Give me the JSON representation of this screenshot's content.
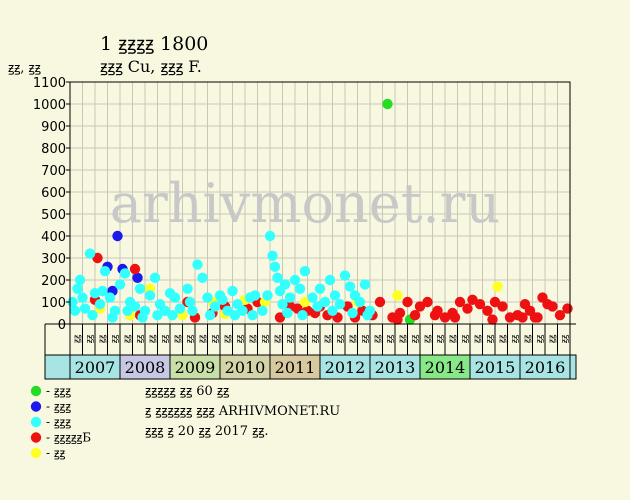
{
  "header": {
    "title": "1 ꙃꙃꙃꙃ 1800",
    "subtitle": "ꙃꙃꙃ Cu, ꙃꙃꙃ F.",
    "y_unit": "ꙃꙃ, ꙃꙃ"
  },
  "watermark": "arhivmonet.ru",
  "colors": {
    "background": "#f8f8e0",
    "grid": "#c8c8b8",
    "green": "#22dd22",
    "blue": "#1a1aee",
    "cyan": "#33ffff",
    "red": "#ee1111",
    "yellow": "#ffff22",
    "watermark": "#c8c8c8"
  },
  "legend": [
    {
      "color_key": "green",
      "label": "- ꙃꙃꙃ"
    },
    {
      "color_key": "blue",
      "label": "- ꙃꙃꙃ"
    },
    {
      "color_key": "cyan",
      "label": "- ꙃꙃꙃ"
    },
    {
      "color_key": "red",
      "label": "- ꙃꙃꙃꙃꙃБ"
    },
    {
      "color_key": "yellow",
      "label": "- ꙃꙃ"
    }
  ],
  "notes": [
    "ꙃꙃꙃꙃꙃ ꙃꙃ 60 ꙃꙃ",
    "ꙃ ꙃꙃꙃꙃꙃꙃ ꙃꙃꙃ ARHIVMONET.RU",
    "ꙃꙃꙃ ꙃ 20 ꙃꙃ 2017 ꙃꙃ."
  ],
  "chart_data": {
    "type": "scatter",
    "ylim": [
      0,
      1100
    ],
    "yticks": [
      0,
      100,
      200,
      300,
      400,
      500,
      600,
      700,
      800,
      900,
      1000,
      1100
    ],
    "grid": true,
    "half_labels": [
      "ꙃꙃ",
      "ꙃꙃ"
    ],
    "years": [
      {
        "label": "2007",
        "color": "#a8e4e4"
      },
      {
        "label": "2008",
        "color": "#c8c8e4"
      },
      {
        "label": "2009",
        "color": "#c8e0a8"
      },
      {
        "label": "2010",
        "color": "#d4d4a8"
      },
      {
        "label": "2011",
        "color": "#d8c8a0"
      },
      {
        "label": "2012",
        "color": "#a8e4e4"
      },
      {
        "label": "2013",
        "color": "#a8e4e4"
      },
      {
        "label": "2014",
        "color": "#88e888"
      },
      {
        "label": "2015",
        "color": "#a8e4e4"
      },
      {
        "label": "2016",
        "color": "#a8e4e4"
      }
    ],
    "series": [
      {
        "color_key": "green",
        "points": [
          [
            2013.35,
            1000
          ],
          [
            2013.8,
            20
          ]
        ]
      },
      {
        "color_key": "blue",
        "points": [
          [
            2007.95,
            400
          ],
          [
            2008.05,
            250
          ],
          [
            2007.75,
            260
          ],
          [
            2008.35,
            210
          ],
          [
            2007.85,
            150
          ]
        ]
      },
      {
        "color_key": "red",
        "points": [
          [
            2007.55,
            300
          ],
          [
            2007.5,
            110
          ],
          [
            2008.3,
            250
          ],
          [
            2008.4,
            40
          ],
          [
            2009.35,
            100
          ],
          [
            2009.5,
            30
          ],
          [
            2009.85,
            50
          ],
          [
            2010.1,
            80
          ],
          [
            2010.55,
            70
          ],
          [
            2010.75,
            100
          ],
          [
            2011.2,
            30
          ],
          [
            2011.4,
            80
          ],
          [
            2011.55,
            70
          ],
          [
            2011.75,
            60
          ],
          [
            2011.9,
            50
          ],
          [
            2012.0,
            80
          ],
          [
            2012.15,
            40
          ],
          [
            2012.35,
            30
          ],
          [
            2012.55,
            80
          ],
          [
            2012.7,
            30
          ],
          [
            2012.85,
            60
          ],
          [
            2013.05,
            40
          ],
          [
            2013.2,
            100
          ],
          [
            2013.45,
            30
          ],
          [
            2013.6,
            50
          ],
          [
            2013.75,
            100
          ],
          [
            2013.9,
            40
          ],
          [
            2014.0,
            80
          ],
          [
            2014.15,
            100
          ],
          [
            2014.3,
            40
          ],
          [
            2014.5,
            30
          ],
          [
            2014.65,
            50
          ],
          [
            2014.8,
            100
          ],
          [
            2014.95,
            70
          ],
          [
            2015.05,
            110
          ],
          [
            2015.2,
            90
          ],
          [
            2015.35,
            60
          ],
          [
            2015.5,
            100
          ],
          [
            2015.65,
            80
          ],
          [
            2015.8,
            30
          ],
          [
            2015.95,
            40
          ],
          [
            2016.1,
            90
          ],
          [
            2016.2,
            60
          ],
          [
            2016.3,
            30
          ],
          [
            2016.45,
            120
          ],
          [
            2016.55,
            90
          ],
          [
            2016.65,
            80
          ],
          [
            2016.8,
            40
          ],
          [
            2016.95,
            70
          ],
          [
            2014.35,
            60
          ],
          [
            2014.7,
            30
          ],
          [
            2015.45,
            20
          ],
          [
            2016.05,
            30
          ],
          [
            2016.35,
            30
          ],
          [
            2013.55,
            20
          ]
        ]
      },
      {
        "color_key": "yellow",
        "points": [
          [
            2007.6,
            70
          ],
          [
            2008.2,
            40
          ],
          [
            2008.6,
            160
          ],
          [
            2009.25,
            40
          ],
          [
            2009.85,
            100
          ],
          [
            2010.1,
            45
          ],
          [
            2010.5,
            110
          ],
          [
            2010.9,
            100
          ],
          [
            2011.7,
            100
          ],
          [
            2012.75,
            100
          ],
          [
            2013.55,
            130
          ],
          [
            2015.55,
            170
          ]
        ]
      },
      {
        "color_key": "cyan",
        "points": [
          [
            2007.05,
            100
          ],
          [
            2007.15,
            160
          ],
          [
            2007.2,
            200
          ],
          [
            2007.3,
            70
          ],
          [
            2007.4,
            320
          ],
          [
            2007.5,
            140
          ],
          [
            2007.6,
            90
          ],
          [
            2007.7,
            240
          ],
          [
            2007.8,
            120
          ],
          [
            2007.9,
            60
          ],
          [
            2008.0,
            180
          ],
          [
            2008.1,
            230
          ],
          [
            2008.2,
            100
          ],
          [
            2008.3,
            80
          ],
          [
            2008.4,
            160
          ],
          [
            2008.5,
            60
          ],
          [
            2008.6,
            130
          ],
          [
            2008.7,
            210
          ],
          [
            2008.8,
            90
          ],
          [
            2008.9,
            60
          ],
          [
            2009.0,
            140
          ],
          [
            2009.1,
            120
          ],
          [
            2009.2,
            70
          ],
          [
            2009.35,
            160
          ],
          [
            2009.45,
            60
          ],
          [
            2009.55,
            270
          ],
          [
            2009.65,
            210
          ],
          [
            2009.75,
            120
          ],
          [
            2009.9,
            80
          ],
          [
            2010.0,
            130
          ],
          [
            2010.15,
            60
          ],
          [
            2010.25,
            150
          ],
          [
            2010.35,
            90
          ],
          [
            2010.45,
            60
          ],
          [
            2010.6,
            120
          ],
          [
            2010.7,
            130
          ],
          [
            2010.85,
            60
          ],
          [
            2011.0,
            400
          ],
          [
            2011.05,
            310
          ],
          [
            2011.1,
            260
          ],
          [
            2011.15,
            210
          ],
          [
            2011.2,
            150
          ],
          [
            2011.25,
            90
          ],
          [
            2011.3,
            180
          ],
          [
            2011.4,
            120
          ],
          [
            2011.5,
            200
          ],
          [
            2011.6,
            160
          ],
          [
            2011.7,
            240
          ],
          [
            2011.85,
            120
          ],
          [
            2012.0,
            160
          ],
          [
            2012.1,
            100
          ],
          [
            2012.2,
            200
          ],
          [
            2012.3,
            130
          ],
          [
            2012.4,
            90
          ],
          [
            2012.5,
            220
          ],
          [
            2012.6,
            170
          ],
          [
            2012.7,
            130
          ],
          [
            2012.8,
            100
          ],
          [
            2012.9,
            180
          ],
          [
            2013.0,
            60
          ],
          [
            2007.1,
            60
          ],
          [
            2007.25,
            120
          ],
          [
            2007.45,
            40
          ],
          [
            2007.65,
            150
          ],
          [
            2007.85,
            30
          ],
          [
            2008.15,
            60
          ],
          [
            2008.45,
            30
          ],
          [
            2008.75,
            40
          ],
          [
            2009.05,
            40
          ],
          [
            2009.4,
            100
          ],
          [
            2009.8,
            40
          ],
          [
            2010.05,
            110
          ],
          [
            2010.3,
            40
          ],
          [
            2010.65,
            40
          ],
          [
            2010.95,
            130
          ],
          [
            2011.35,
            50
          ],
          [
            2011.65,
            40
          ],
          [
            2011.95,
            80
          ],
          [
            2012.25,
            60
          ],
          [
            2012.65,
            50
          ],
          [
            2012.95,
            40
          ]
        ]
      }
    ]
  }
}
